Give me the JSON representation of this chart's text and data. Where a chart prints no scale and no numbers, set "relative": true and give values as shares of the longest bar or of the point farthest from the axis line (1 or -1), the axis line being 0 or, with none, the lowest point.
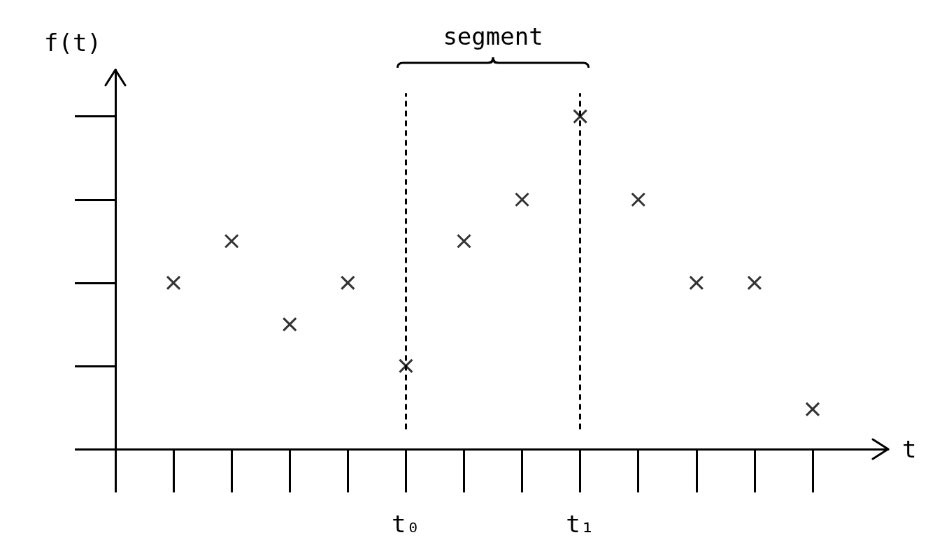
{
  "chart_data": {
    "type": "scatter",
    "relative": true,
    "xlabel": "t",
    "ylabel": "f(t)",
    "annotations": [
      "segment"
    ],
    "categories": [
      null,
      null,
      null,
      null,
      "t₀",
      null,
      null,
      "t₁",
      null,
      null,
      null,
      null
    ],
    "values": [
      0.5,
      0.625,
      0.375,
      0.5,
      0.25,
      0.625,
      0.75,
      1,
      0.75,
      0.5,
      0.5,
      0.12
    ],
    "color": "#000000",
    "marker": "cross",
    "grid": false,
    "tick_labels": "x",
    "ref_lines": [
      {
        "axis": "x",
        "value": "t₀",
        "label": null,
        "line_style": "dashed"
      },
      {
        "axis": "x",
        "value": "t₁",
        "label": null,
        "line_style": "dashed"
      }
    ]
  }
}
